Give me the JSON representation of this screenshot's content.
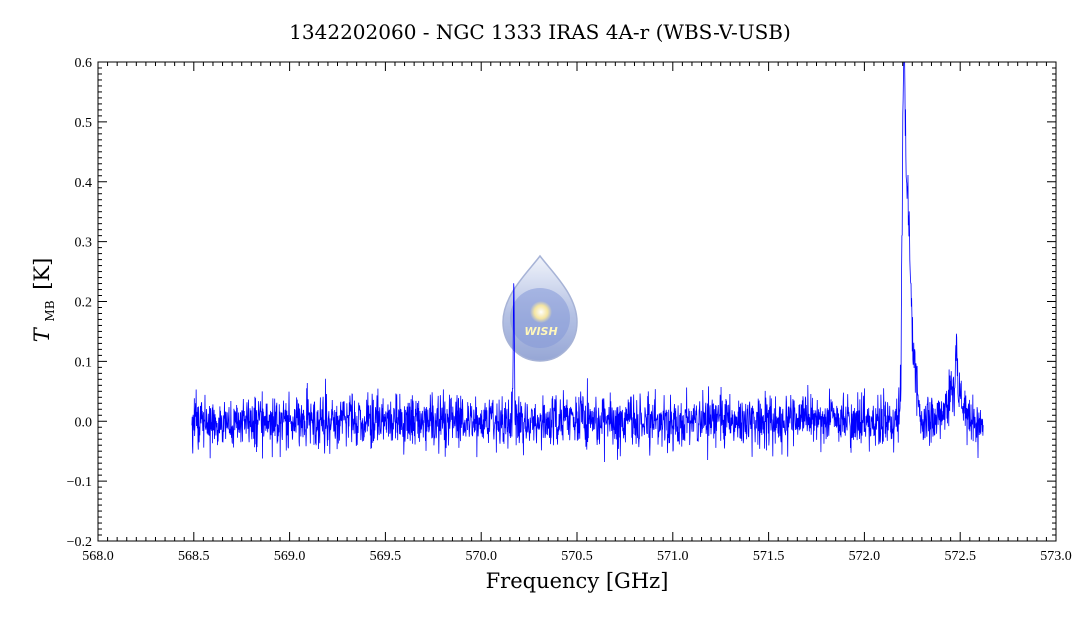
{
  "chart_data": {
    "type": "line",
    "title": "1342202060 - NGC 1333 IRAS 4A-r (WBS-V-USB)",
    "xlabel": "Frequency [GHz]",
    "ylabel_main": "T",
    "ylabel_sub": "MB",
    "ylabel_unit": "[K]",
    "xlim": [
      568.0,
      573.0
    ],
    "ylim": [
      -0.2,
      0.6
    ],
    "x_ticks": [
      "568.0",
      "568.5",
      "569.0",
      "569.5",
      "570.0",
      "570.5",
      "571.0",
      "571.5",
      "572.0",
      "572.5",
      "573.0"
    ],
    "y_ticks": [
      "−0.2",
      "−0.1",
      "0.0",
      "0.1",
      "0.2",
      "0.3",
      "0.4",
      "0.5",
      "0.6"
    ],
    "grid": false,
    "series": [
      {
        "color": "#0000ff",
        "x_range": [
          568.49,
          572.62
        ],
        "noise_rms": 0.022,
        "features": [
          {
            "center": 570.17,
            "peak": 0.195,
            "width": 0.003
          },
          {
            "center": 572.205,
            "peak": 0.52,
            "width": 0.008
          },
          {
            "center": 572.225,
            "peak": 0.3,
            "width": 0.012
          },
          {
            "center": 572.25,
            "peak": 0.12,
            "width": 0.02
          },
          {
            "center": 572.47,
            "peak": 0.05,
            "width": 0.04
          },
          {
            "center": 572.48,
            "peak": 0.1,
            "width": 0.004
          }
        ]
      }
    ]
  },
  "logo": {
    "text": "WISH",
    "icon": "wish-water-drop-logo"
  }
}
